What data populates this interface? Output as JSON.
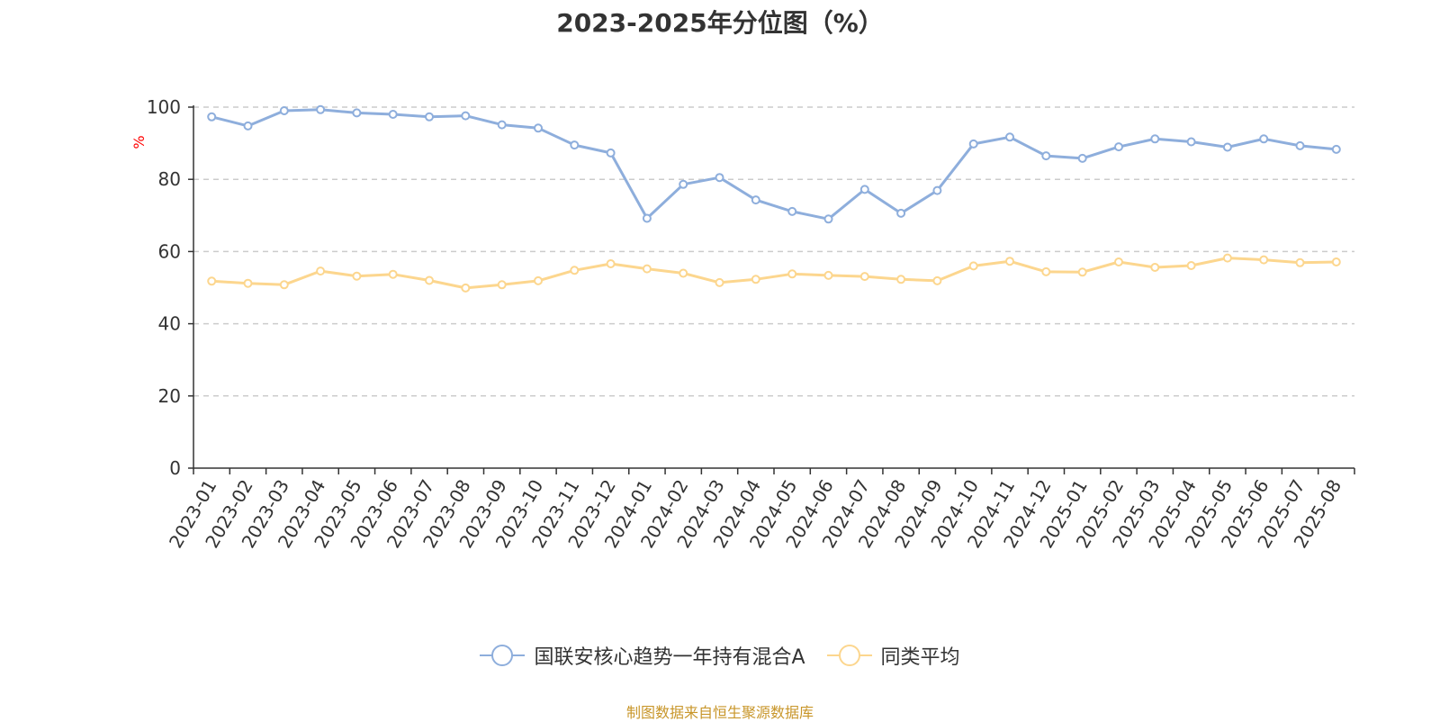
{
  "chart_data": {
    "type": "line",
    "title": "2023-2025年分位图（%）",
    "ylabel": "%",
    "ylim": [
      0,
      100
    ],
    "yticks": [
      0,
      20,
      40,
      60,
      80,
      100
    ],
    "grid": true,
    "legend_position": "bottom-center",
    "categories": [
      "2023-01",
      "2023-02",
      "2023-03",
      "2023-04",
      "2023-05",
      "2023-06",
      "2023-07",
      "2023-08",
      "2023-09",
      "2023-10",
      "2023-11",
      "2023-12",
      "2024-01",
      "2024-02",
      "2024-03",
      "2024-04",
      "2024-05",
      "2024-06",
      "2024-07",
      "2024-08",
      "2024-09",
      "2024-10",
      "2024-11",
      "2024-12",
      "2025-01",
      "2025-02",
      "2025-03",
      "2025-04",
      "2025-05",
      "2025-06",
      "2025-07",
      "2025-08"
    ],
    "series": [
      {
        "name": "国联安核心趋势一年持有混合A",
        "color": "#8eaedc",
        "values": [
          97.3,
          94.8,
          99.0,
          99.3,
          98.4,
          98.0,
          97.3,
          97.6,
          95.1,
          94.2,
          89.5,
          87.3,
          69.2,
          78.6,
          80.5,
          74.3,
          71.1,
          69.0,
          77.2,
          70.6,
          76.9,
          89.8,
          91.7,
          86.5,
          85.8,
          89.0,
          91.2,
          90.4,
          88.9,
          91.2,
          89.3,
          88.3
        ]
      },
      {
        "name": "同类平均",
        "color": "#fcd68e",
        "values": [
          51.8,
          51.2,
          50.8,
          54.6,
          53.2,
          53.7,
          52.0,
          49.9,
          50.8,
          51.9,
          54.8,
          56.6,
          55.2,
          54.0,
          51.4,
          52.3,
          53.8,
          53.4,
          53.1,
          52.3,
          51.9,
          56.0,
          57.3,
          54.4,
          54.3,
          57.1,
          55.6,
          56.1,
          58.2,
          57.7,
          56.9,
          57.1
        ]
      }
    ]
  },
  "source_text": "制图数据来自恒生聚源数据库"
}
